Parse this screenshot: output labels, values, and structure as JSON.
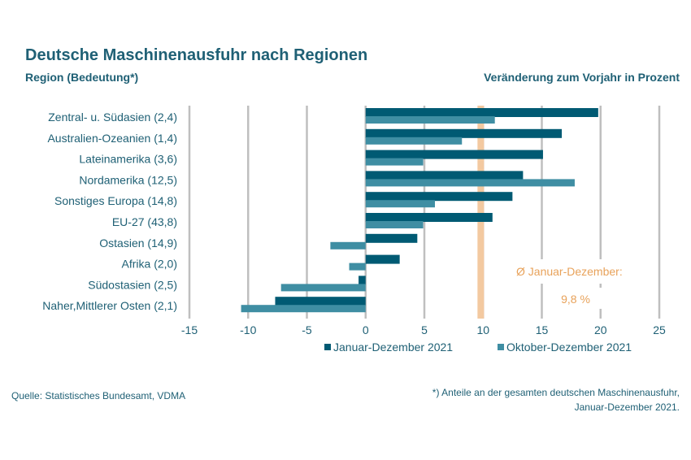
{
  "header": {
    "title": "Deutsche Maschinenausfuhr nach Regionen",
    "subtitle_left": "Region (Bedeutung*)",
    "subtitle_right": "Veränderung zum Vorjahr in Prozent"
  },
  "footer": {
    "source": "Quelle: Statistisches Bundesamt, VDMA",
    "footnote_line1": "*) Anteile an der gesamten deutschen Maschinenausfuhr,",
    "footnote_line2": "Januar-Dezember 2021."
  },
  "colors": {
    "series1": "#005a73",
    "series2": "#3f8ea3",
    "average_line": "#f3c9a0",
    "average_text": "#e8a25a",
    "grid": "#bfbfbf",
    "label_text": "#1f6075"
  },
  "chart_data": {
    "type": "bar",
    "orientation": "horizontal",
    "categories": [
      "Zentral- u. Südasien (2,4)",
      "Australien-Ozeanien (1,4)",
      "Lateinamerika (3,6)",
      "Nordamerika (12,5)",
      "Sonstiges Europa (14,8)",
      "EU-27 (43,8)",
      "Ostasien (14,9)",
      "Afrika (2,0)",
      "Südostasien (2,5)",
      "Naher,Mittlerer Osten (2,1)"
    ],
    "series": [
      {
        "name": "Januar-Dezember 2021",
        "values": [
          19.8,
          16.7,
          15.1,
          13.4,
          12.5,
          10.8,
          4.4,
          2.9,
          -0.6,
          -7.7
        ]
      },
      {
        "name": "Oktober-Dezember 2021",
        "values": [
          11.0,
          8.2,
          4.9,
          17.8,
          5.9,
          4.9,
          -3.0,
          -1.4,
          -7.2,
          -10.6
        ]
      }
    ],
    "xlim": [
      -15,
      25
    ],
    "xticks": [
      "-15",
      "-10",
      "-5",
      "0",
      "5",
      "10",
      "15",
      "20",
      "25"
    ],
    "average": {
      "value": 9.8,
      "label": "Ø Januar-Dezember:",
      "value_label": "9,8 %"
    },
    "grid": true,
    "legend_position": "bottom"
  }
}
